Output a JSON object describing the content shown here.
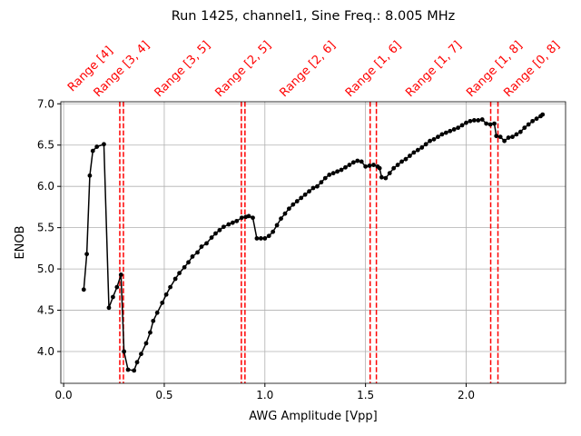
{
  "chart_data": {
    "type": "line",
    "title": "Run 1425, channel1, Sine Freq.: 8.005 MHz",
    "x_label": "AWG Amplitude [Vpp]",
    "y_label": "ENOB",
    "xlim": [
      -0.014,
      2.494
    ],
    "ylim": [
      3.615,
      7.025
    ],
    "xticks": [
      {
        "value": 0,
        "label": "0.0"
      },
      {
        "value": 0.5,
        "label": "0.5"
      },
      {
        "value": 1,
        "label": "1.0"
      },
      {
        "value": 1.5,
        "label": "1.5"
      },
      {
        "value": 2,
        "label": "2.0"
      }
    ],
    "yticks": [
      {
        "value": 4,
        "label": "4.0"
      },
      {
        "value": 4.5,
        "label": "4.5"
      },
      {
        "value": 5,
        "label": "5.0"
      },
      {
        "value": 5.5,
        "label": "5.5"
      },
      {
        "value": 6,
        "label": "6.0"
      },
      {
        "value": 6.5,
        "label": "6.5"
      },
      {
        "value": 7,
        "label": "7.0"
      }
    ],
    "grid": true,
    "series": [
      {
        "color": "#000000",
        "x": [
          0.1,
          0.115,
          0.13,
          0.145,
          0.165,
          0.2,
          0.225,
          0.245,
          0.265,
          0.285,
          0.3,
          0.32,
          0.35,
          0.365,
          0.385,
          0.41,
          0.43,
          0.445,
          0.465,
          0.49,
          0.51,
          0.53,
          0.555,
          0.575,
          0.6,
          0.62,
          0.64,
          0.665,
          0.685,
          0.71,
          0.735,
          0.755,
          0.775,
          0.795,
          0.82,
          0.84,
          0.86,
          0.885,
          0.905,
          0.92,
          0.94,
          0.96,
          0.98,
          1.0,
          1.02,
          1.04,
          1.06,
          1.08,
          1.1,
          1.12,
          1.14,
          1.16,
          1.18,
          1.2,
          1.22,
          1.24,
          1.26,
          1.28,
          1.3,
          1.32,
          1.34,
          1.36,
          1.38,
          1.4,
          1.42,
          1.44,
          1.46,
          1.48,
          1.5,
          1.52,
          1.54,
          1.56,
          1.57,
          1.58,
          1.6,
          1.62,
          1.64,
          1.66,
          1.68,
          1.7,
          1.72,
          1.74,
          1.76,
          1.78,
          1.8,
          1.82,
          1.84,
          1.86,
          1.88,
          1.9,
          1.92,
          1.94,
          1.96,
          1.98,
          2.0,
          2.02,
          2.04,
          2.06,
          2.08,
          2.1,
          2.12,
          2.14,
          2.15,
          2.17,
          2.19,
          2.21,
          2.23,
          2.25,
          2.27,
          2.29,
          2.31,
          2.33,
          2.35,
          2.37,
          2.38
        ],
        "values": [
          4.75,
          5.18,
          6.13,
          6.43,
          6.48,
          6.51,
          4.53,
          4.66,
          4.78,
          4.93,
          4.0,
          3.78,
          3.77,
          3.87,
          3.97,
          4.1,
          4.23,
          4.37,
          4.47,
          4.59,
          4.69,
          4.78,
          4.88,
          4.95,
          5.02,
          5.08,
          5.15,
          5.2,
          5.27,
          5.31,
          5.38,
          5.43,
          5.47,
          5.51,
          5.54,
          5.56,
          5.58,
          5.62,
          5.63,
          5.64,
          5.62,
          5.37,
          5.37,
          5.37,
          5.4,
          5.45,
          5.53,
          5.61,
          5.67,
          5.73,
          5.78,
          5.82,
          5.86,
          5.9,
          5.94,
          5.98,
          6.0,
          6.05,
          6.1,
          6.14,
          6.16,
          6.18,
          6.2,
          6.23,
          6.26,
          6.29,
          6.31,
          6.3,
          6.24,
          6.25,
          6.26,
          6.24,
          6.22,
          6.11,
          6.1,
          6.16,
          6.22,
          6.26,
          6.3,
          6.33,
          6.37,
          6.41,
          6.44,
          6.47,
          6.51,
          6.55,
          6.57,
          6.6,
          6.63,
          6.65,
          6.67,
          6.69,
          6.71,
          6.74,
          6.77,
          6.79,
          6.8,
          6.8,
          6.81,
          6.76,
          6.75,
          6.76,
          6.61,
          6.6,
          6.55,
          6.59,
          6.6,
          6.63,
          6.66,
          6.71,
          6.75,
          6.79,
          6.82,
          6.85,
          6.87
        ]
      }
    ],
    "vlines": [
      0.279,
      0.297,
      0.883,
      0.901,
      1.523,
      1.554,
      2.122,
      2.158
    ],
    "vline_color": "#ff0000",
    "range_labels": [
      "Range [4]",
      "Range [3, 4]",
      "Range [3, 5]",
      "Range [2, 5]",
      "Range [2, 6]",
      "Range [1, 6]",
      "Range [1, 7]",
      "Range [1, 8]",
      "Range [0, 8]"
    ]
  }
}
